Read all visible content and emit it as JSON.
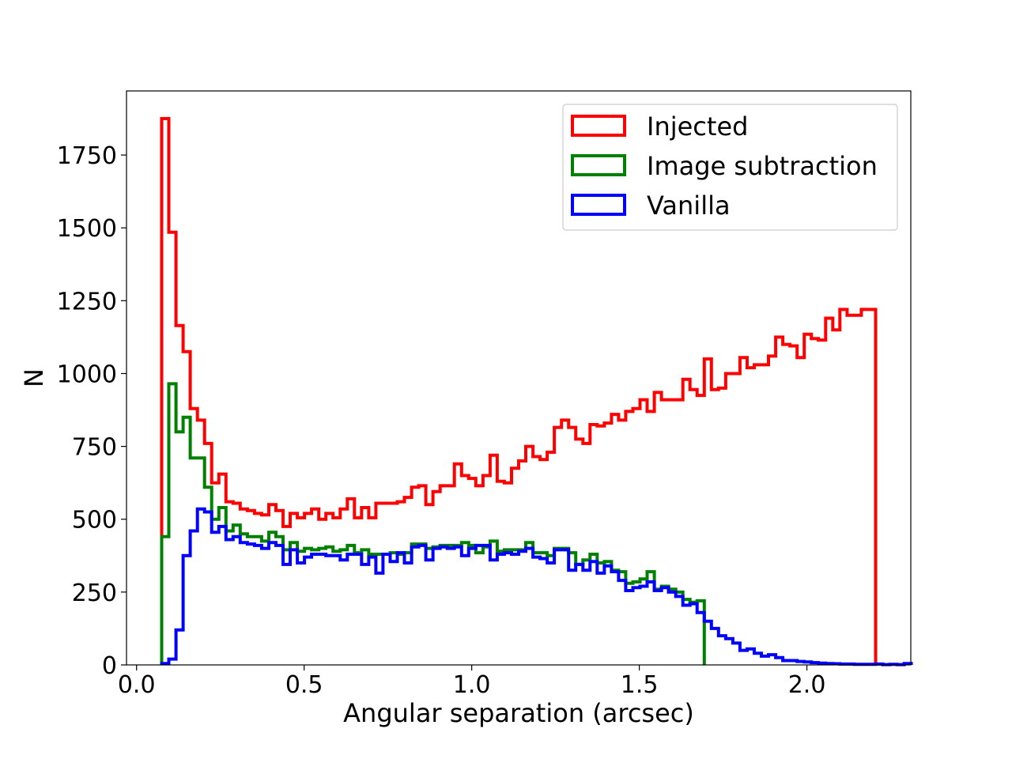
{
  "chart_data": {
    "type": "histogram",
    "title": "",
    "xlabel": "Angular separation (arcsec)",
    "ylabel": "N",
    "xlim": [
      -0.03,
      2.31
    ],
    "ylim": [
      0,
      1970
    ],
    "xticks": [
      {
        "value": 0.0,
        "label": "0.0"
      },
      {
        "value": 0.5,
        "label": "0.5"
      },
      {
        "value": 1.0,
        "label": "1.0"
      },
      {
        "value": 1.5,
        "label": "1.5"
      },
      {
        "value": 2.0,
        "label": "2.0"
      }
    ],
    "yticks": [
      {
        "value": 0,
        "label": "0"
      },
      {
        "value": 250,
        "label": "250"
      },
      {
        "value": 500,
        "label": "500"
      },
      {
        "value": 750,
        "label": "750"
      },
      {
        "value": 1000,
        "label": "1000"
      },
      {
        "value": 1250,
        "label": "1250"
      },
      {
        "value": 1500,
        "label": "1500"
      },
      {
        "value": 1750,
        "label": "1750"
      }
    ],
    "legend_position": "top-right",
    "bins": {
      "start": 0.075,
      "width": 0.0213,
      "count": 105
    },
    "series": [
      {
        "name": "Injected",
        "color": "#ff0000",
        "values": [
          1875,
          1485,
          1165,
          1075,
          880,
          840,
          760,
          625,
          655,
          560,
          555,
          535,
          530,
          520,
          515,
          550,
          530,
          475,
          520,
          505,
          520,
          535,
          500,
          520,
          505,
          535,
          570,
          505,
          540,
          505,
          555,
          555,
          555,
          560,
          575,
          610,
          615,
          550,
          595,
          615,
          615,
          690,
          650,
          640,
          615,
          650,
          720,
          630,
          625,
          675,
          700,
          750,
          715,
          705,
          730,
          815,
          840,
          815,
          775,
          760,
          825,
          820,
          830,
          860,
          840,
          870,
          880,
          910,
          870,
          935,
          910,
          910,
          910,
          980,
          945,
          925,
          1050,
          945,
          950,
          1000,
          1000,
          1055,
          1020,
          1030,
          1030,
          1060,
          1125,
          1100,
          1095,
          1055,
          1135,
          1120,
          1115,
          1190,
          1150,
          1220,
          1200,
          1200,
          1220,
          1220
        ]
      },
      {
        "name": "Image subtraction",
        "color": "#008000",
        "values": [
          440,
          965,
          800,
          850,
          710,
          710,
          610,
          500,
          540,
          460,
          480,
          450,
          440,
          440,
          425,
          455,
          440,
          395,
          420,
          390,
          400,
          395,
          400,
          405,
          390,
          395,
          410,
          385,
          395,
          380,
          380,
          380,
          385,
          380,
          385,
          415,
          415,
          400,
          405,
          410,
          410,
          410,
          420,
          410,
          385,
          405,
          425,
          390,
          395,
          395,
          395,
          420,
          385,
          385,
          375,
          400,
          400,
          385,
          345,
          360,
          380,
          350,
          355,
          325,
          320,
          280,
          285,
          295,
          320,
          260,
          270,
          260,
          250,
          225,
          215,
          220
        ]
      },
      {
        "name": "Vanilla",
        "color": "#0000ff",
        "values": [
          5,
          20,
          120,
          375,
          460,
          535,
          525,
          455,
          475,
          430,
          440,
          420,
          415,
          410,
          400,
          420,
          410,
          345,
          395,
          350,
          370,
          380,
          380,
          375,
          375,
          360,
          380,
          380,
          345,
          370,
          315,
          380,
          355,
          385,
          350,
          405,
          410,
          360,
          400,
          405,
          400,
          405,
          375,
          400,
          410,
          410,
          360,
          380,
          385,
          380,
          390,
          400,
          370,
          365,
          350,
          395,
          395,
          325,
          345,
          325,
          355,
          315,
          340,
          320,
          290,
          255,
          265,
          270,
          285,
          255,
          265,
          250,
          235,
          205,
          210,
          180,
          150,
          125,
          100,
          90,
          75,
          50,
          55,
          40,
          30,
          35,
          25,
          15,
          15,
          12,
          10,
          8,
          6,
          5,
          4,
          3,
          3,
          2,
          2,
          2,
          3,
          1,
          2,
          1,
          5
        ]
      }
    ]
  }
}
